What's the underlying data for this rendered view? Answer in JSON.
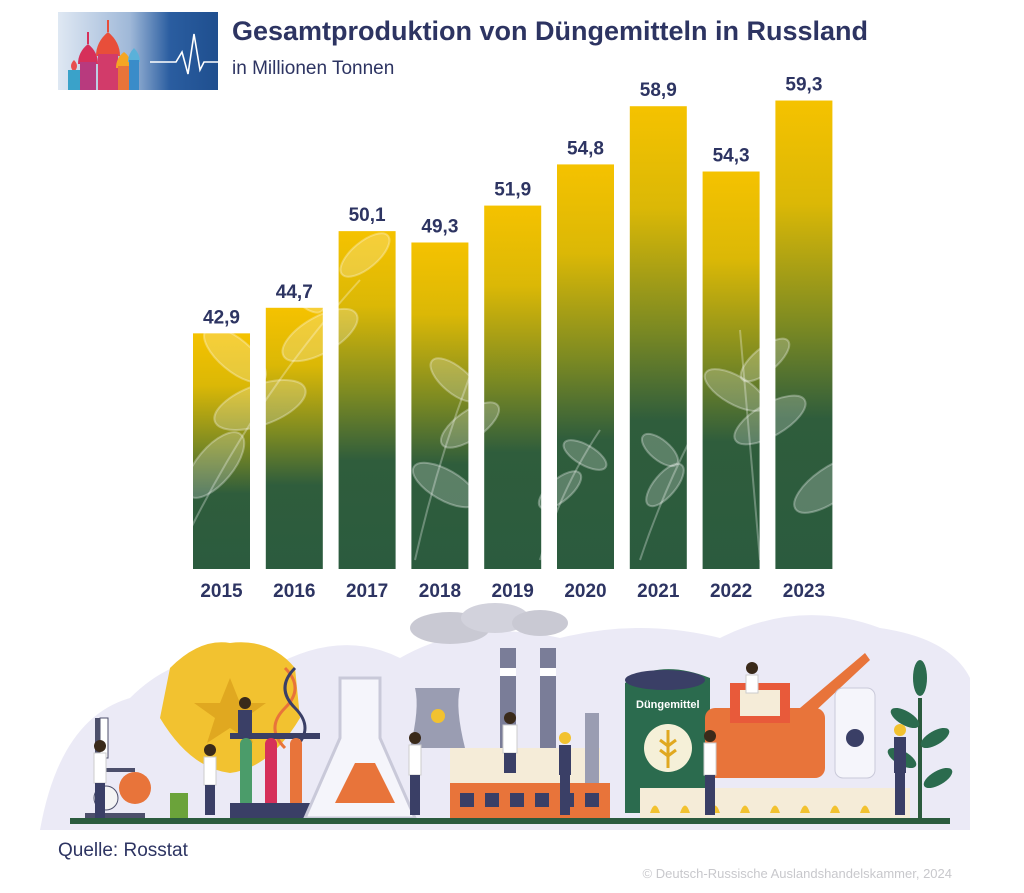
{
  "header": {
    "title": "Gesamtproduktion von Düngemitteln in Russland",
    "subtitle": "in Millionen Tonnen"
  },
  "illustration": {
    "sack_label": "Düngemittel"
  },
  "footer": {
    "source": "Quelle: Rosstat",
    "copyright": "© Deutsch-Russische Auslandshandelskammer, 2024"
  },
  "colors": {
    "bar_top": "#f5c200",
    "bar_mid": "#7c8a22",
    "bar_bottom": "#2b5b3e",
    "text": "#2d3462",
    "logo_bg": "#1f4f8f"
  },
  "chart_data": {
    "type": "bar",
    "title": "Gesamtproduktion von Düngemitteln in Russland",
    "subtitle": "in Millionen Tonnen",
    "categories": [
      "2015",
      "2016",
      "2017",
      "2018",
      "2019",
      "2020",
      "2021",
      "2022",
      "2023"
    ],
    "values": [
      42.9,
      44.7,
      50.1,
      49.3,
      51.9,
      54.8,
      58.9,
      54.3,
      59.3
    ],
    "value_labels": [
      "42,9",
      "44,7",
      "50,1",
      "49,3",
      "51,9",
      "54,8",
      "58,9",
      "54,3",
      "59,3"
    ],
    "xlabel": "",
    "ylabel": "",
    "grid": false,
    "legend": "none"
  }
}
